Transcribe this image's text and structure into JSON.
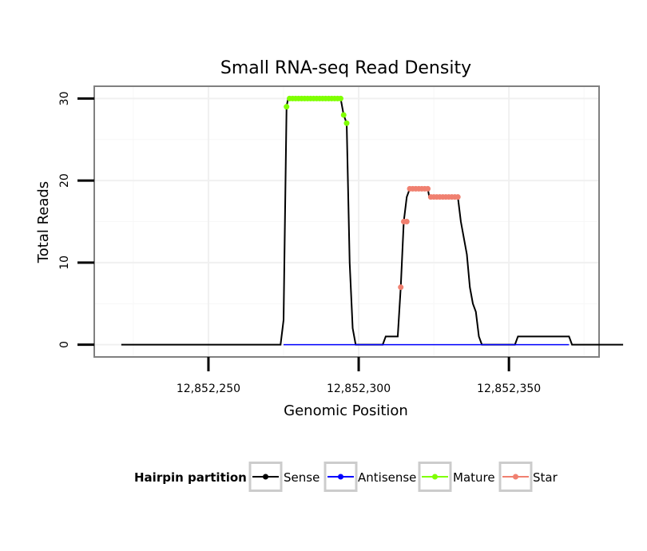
{
  "chart_data": {
    "type": "line",
    "title": "Small RNA-seq Read Density",
    "xlabel": "Genomic Position",
    "ylabel": "Total Reads",
    "xlim": [
      12852212,
      12852380
    ],
    "ylim": [
      -1.5,
      31.5
    ],
    "x_ticks": [
      12852250,
      12852300,
      12852350
    ],
    "x_tick_labels": [
      "12,852,250",
      "12,852,300",
      "12,852,350"
    ],
    "y_ticks": [
      0,
      10,
      20,
      30
    ],
    "y_tick_labels": [
      "0",
      "10",
      "20",
      "30"
    ],
    "grid": true,
    "legend_position": "bottom",
    "legend_title": "Hairpin partition",
    "series": [
      {
        "name": "Sense",
        "color": "#000000",
        "marker": false,
        "points": [
          [
            12852221,
            0
          ],
          [
            12852274,
            0
          ],
          [
            12852275,
            3
          ],
          [
            12852276,
            29
          ],
          [
            12852276.5,
            30
          ],
          [
            12852294,
            30
          ],
          [
            12852295,
            28
          ],
          [
            12852296,
            27
          ],
          [
            12852297,
            10
          ],
          [
            12852298,
            2
          ],
          [
            12852299,
            0
          ],
          [
            12852308,
            0
          ],
          [
            12852309,
            1
          ],
          [
            12852313,
            1
          ],
          [
            12852314,
            7
          ],
          [
            12852315,
            15
          ],
          [
            12852316,
            18
          ],
          [
            12852317,
            19
          ],
          [
            12852323,
            19
          ],
          [
            12852323.5,
            18
          ],
          [
            12852333,
            18
          ],
          [
            12852334,
            15
          ],
          [
            12852336,
            11
          ],
          [
            12852337,
            7
          ],
          [
            12852338,
            5
          ],
          [
            12852339,
            4
          ],
          [
            12852340,
            1
          ],
          [
            12852341,
            0
          ],
          [
            12852352,
            0
          ],
          [
            12852353,
            1
          ],
          [
            12852370,
            1
          ],
          [
            12852371,
            0
          ],
          [
            12852388,
            0
          ]
        ]
      },
      {
        "name": "Antisense",
        "color": "#0000ff",
        "marker": false,
        "points": [
          [
            12852275,
            0
          ],
          [
            12852370,
            0
          ]
        ]
      },
      {
        "name": "Mature",
        "color": "#7fff00",
        "marker": true,
        "points": [
          [
            12852276,
            29
          ],
          [
            12852277,
            30
          ],
          [
            12852278,
            30
          ],
          [
            12852279,
            30
          ],
          [
            12852280,
            30
          ],
          [
            12852281,
            30
          ],
          [
            12852282,
            30
          ],
          [
            12852283,
            30
          ],
          [
            12852284,
            30
          ],
          [
            12852285,
            30
          ],
          [
            12852286,
            30
          ],
          [
            12852287,
            30
          ],
          [
            12852288,
            30
          ],
          [
            12852289,
            30
          ],
          [
            12852290,
            30
          ],
          [
            12852291,
            30
          ],
          [
            12852292,
            30
          ],
          [
            12852293,
            30
          ],
          [
            12852294,
            30
          ],
          [
            12852295,
            28
          ],
          [
            12852296,
            27
          ]
        ]
      },
      {
        "name": "Star",
        "color": "#f08070",
        "marker": true,
        "points": [
          [
            12852314,
            7
          ],
          [
            12852315,
            15
          ],
          [
            12852316,
            15
          ],
          [
            12852317,
            19
          ],
          [
            12852318,
            19
          ],
          [
            12852319,
            19
          ],
          [
            12852320,
            19
          ],
          [
            12852321,
            19
          ],
          [
            12852322,
            19
          ],
          [
            12852323,
            19
          ],
          [
            12852324,
            18
          ],
          [
            12852325,
            18
          ],
          [
            12852326,
            18
          ],
          [
            12852327,
            18
          ],
          [
            12852328,
            18
          ],
          [
            12852329,
            18
          ],
          [
            12852330,
            18
          ],
          [
            12852331,
            18
          ],
          [
            12852332,
            18
          ],
          [
            12852333,
            18
          ]
        ]
      }
    ]
  }
}
